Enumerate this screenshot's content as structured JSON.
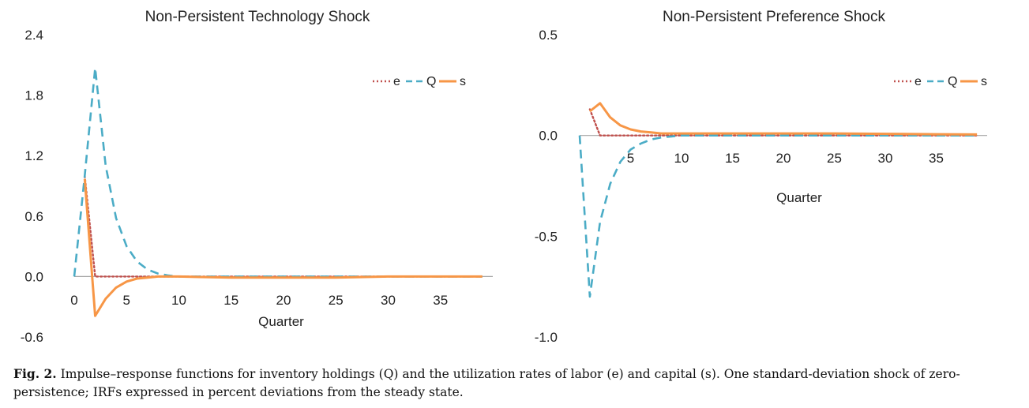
{
  "chart_data": [
    {
      "type": "line",
      "title": "Non-Persistent Technology Shock",
      "xlabel": "Quarter",
      "ylabel": "",
      "xlim": [
        0,
        40
      ],
      "ylim": [
        -0.6,
        2.4
      ],
      "yticks": [
        "2.4",
        "1.8",
        "1.2",
        "0.6",
        "0.0",
        "-0.6"
      ],
      "ytick_values": [
        2.4,
        1.8,
        1.2,
        0.6,
        0.0,
        -0.6
      ],
      "xticks": [
        "0",
        "5",
        "10",
        "15",
        "20",
        "25",
        "30",
        "35"
      ],
      "xtick_values": [
        0,
        5,
        10,
        15,
        20,
        25,
        30,
        35
      ],
      "legend": {
        "placement": "top-right",
        "entries": [
          "e",
          "Q",
          "s"
        ]
      },
      "series": [
        {
          "name": "e",
          "color": "#c0504d",
          "style": "dotted",
          "x": [
            1,
            2,
            3,
            4,
            5,
            6,
            7,
            8,
            9,
            10,
            15,
            20,
            25,
            30,
            35,
            39
          ],
          "y": [
            1.0,
            0.0,
            0.0,
            0.0,
            0.0,
            0.0,
            0.0,
            0.0,
            0.0,
            0.0,
            0.0,
            0.0,
            0.0,
            0.0,
            0.0,
            0.0
          ]
        },
        {
          "name": "Q",
          "color": "#4bacc6",
          "style": "dashed",
          "x": [
            0,
            1,
            2,
            3,
            4,
            5,
            6,
            7,
            8,
            9,
            10,
            12,
            15,
            20,
            25,
            30,
            35,
            39
          ],
          "y": [
            0.0,
            1.0,
            2.07,
            1.1,
            0.58,
            0.3,
            0.15,
            0.07,
            0.03,
            0.01,
            0.0,
            0.0,
            0.0,
            0.0,
            0.0,
            0.0,
            0.0,
            0.0
          ]
        },
        {
          "name": "s",
          "color": "#f79646",
          "style": "solid",
          "x": [
            1,
            2,
            3,
            4,
            5,
            6,
            7,
            8,
            10,
            12,
            15,
            20,
            25,
            30,
            35,
            39
          ],
          "y": [
            0.97,
            -0.39,
            -0.22,
            -0.11,
            -0.05,
            -0.02,
            -0.01,
            0.0,
            0.0,
            -0.005,
            -0.01,
            -0.01,
            -0.01,
            0.0,
            0.0,
            0.0
          ]
        }
      ]
    },
    {
      "type": "line",
      "title": "Non-Persistent Preference Shock",
      "xlabel": "Quarter",
      "ylabel": "",
      "xlim": [
        0,
        40
      ],
      "ylim": [
        -1.0,
        0.5
      ],
      "yticks": [
        "0.5",
        "0.0",
        "-0.5",
        "-1.0"
      ],
      "ytick_values": [
        0.5,
        0.0,
        -0.5,
        -1.0
      ],
      "xticks": [
        "5",
        "10",
        "15",
        "20",
        "25",
        "30",
        "35"
      ],
      "xtick_values": [
        5,
        10,
        15,
        20,
        25,
        30,
        35
      ],
      "legend": {
        "placement": "top-right",
        "entries": [
          "e",
          "Q",
          "s"
        ]
      },
      "series": [
        {
          "name": "e",
          "color": "#c0504d",
          "style": "dotted",
          "x": [
            1,
            2,
            3,
            5,
            10,
            15,
            20,
            25,
            30,
            35,
            39
          ],
          "y": [
            0.13,
            0.0,
            0.0,
            0.0,
            0.0,
            0.0,
            0.0,
            0.0,
            0.0,
            0.0,
            0.0
          ]
        },
        {
          "name": "Q",
          "color": "#4bacc6",
          "style": "dashed",
          "x": [
            0,
            1,
            2,
            3,
            4,
            5,
            6,
            7,
            8,
            9,
            10,
            15,
            20,
            25,
            30,
            35,
            39
          ],
          "y": [
            0.0,
            -0.8,
            -0.43,
            -0.24,
            -0.13,
            -0.07,
            -0.04,
            -0.02,
            -0.01,
            -0.005,
            0.0,
            0.0,
            0.0,
            0.0,
            0.0,
            0.0,
            0.0
          ]
        },
        {
          "name": "s",
          "color": "#f79646",
          "style": "solid",
          "x": [
            1,
            2,
            3,
            4,
            5,
            6,
            7,
            8,
            10,
            15,
            20,
            25,
            30,
            35,
            39
          ],
          "y": [
            0.12,
            0.16,
            0.09,
            0.05,
            0.03,
            0.02,
            0.015,
            0.01,
            0.01,
            0.01,
            0.01,
            0.01,
            0.008,
            0.006,
            0.005
          ]
        }
      ]
    }
  ],
  "caption": {
    "label": "Fig. 2.",
    "text": " Impulse–response functions for inventory holdings (Q) and the utilization rates of labor (e) and capital (s). One standard-deviation shock of zero-persistence; IRFs expressed in percent deviations from the steady state."
  }
}
